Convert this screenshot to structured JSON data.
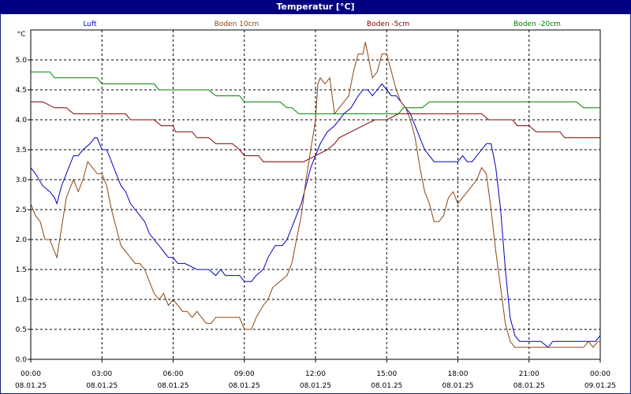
{
  "window": {
    "title": "Temperatur [°C]"
  },
  "chart_data": {
    "type": "line",
    "title": "Temperatur [°C]",
    "ylabel": "°C",
    "ylim": [
      0.0,
      5.5
    ],
    "y_ticks": [
      "0.0",
      "0.5",
      "1.0",
      "1.5",
      "2.0",
      "2.5",
      "3.0",
      "3.5",
      "4.0",
      "4.5",
      "5.0"
    ],
    "x_ticks": [
      {
        "time": "00:00",
        "date": "08.01.25"
      },
      {
        "time": "03:00",
        "date": "08.01.25"
      },
      {
        "time": "06:00",
        "date": "08.01.25"
      },
      {
        "time": "09:00",
        "date": "08.01.25"
      },
      {
        "time": "12:00",
        "date": "08.01.25"
      },
      {
        "time": "15:00",
        "date": "08.01.25"
      },
      {
        "time": "18:00",
        "date": "08.01.25"
      },
      {
        "time": "21:00",
        "date": "08.01.25"
      },
      {
        "time": "00:00",
        "date": "09.01.25"
      }
    ],
    "x_unit": "hours since 08.01.25 00:00",
    "grid": true,
    "legend_position": "top",
    "series": [
      {
        "name": "Luft",
        "color": "#0000c0",
        "points": [
          [
            0.0,
            3.2
          ],
          [
            0.2,
            3.1
          ],
          [
            0.5,
            2.9
          ],
          [
            0.8,
            2.8
          ],
          [
            1.0,
            2.7
          ],
          [
            1.1,
            2.6
          ],
          [
            1.3,
            2.9
          ],
          [
            1.5,
            3.1
          ],
          [
            1.8,
            3.4
          ],
          [
            2.0,
            3.4
          ],
          [
            2.2,
            3.5
          ],
          [
            2.5,
            3.6
          ],
          [
            2.7,
            3.7
          ],
          [
            2.8,
            3.7
          ],
          [
            3.0,
            3.5
          ],
          [
            3.2,
            3.5
          ],
          [
            3.4,
            3.3
          ],
          [
            3.6,
            3.1
          ],
          [
            3.8,
            2.9
          ],
          [
            4.0,
            2.8
          ],
          [
            4.2,
            2.6
          ],
          [
            4.4,
            2.5
          ],
          [
            4.6,
            2.4
          ],
          [
            4.8,
            2.3
          ],
          [
            5.0,
            2.1
          ],
          [
            5.2,
            2.0
          ],
          [
            5.4,
            1.9
          ],
          [
            5.6,
            1.8
          ],
          [
            5.8,
            1.7
          ],
          [
            6.0,
            1.7
          ],
          [
            6.2,
            1.6
          ],
          [
            6.5,
            1.6
          ],
          [
            7.0,
            1.5
          ],
          [
            7.5,
            1.5
          ],
          [
            7.8,
            1.4
          ],
          [
            8.0,
            1.5
          ],
          [
            8.2,
            1.4
          ],
          [
            8.5,
            1.4
          ],
          [
            8.8,
            1.4
          ],
          [
            9.0,
            1.3
          ],
          [
            9.3,
            1.3
          ],
          [
            9.5,
            1.4
          ],
          [
            9.8,
            1.5
          ],
          [
            10.0,
            1.7
          ],
          [
            10.3,
            1.9
          ],
          [
            10.6,
            1.9
          ],
          [
            10.8,
            2.0
          ],
          [
            11.0,
            2.2
          ],
          [
            11.2,
            2.4
          ],
          [
            11.4,
            2.6
          ],
          [
            11.6,
            2.9
          ],
          [
            11.8,
            3.2
          ],
          [
            12.0,
            3.4
          ],
          [
            12.2,
            3.6
          ],
          [
            12.5,
            3.8
          ],
          [
            12.8,
            3.9
          ],
          [
            13.0,
            4.0
          ],
          [
            13.2,
            4.1
          ],
          [
            13.5,
            4.2
          ],
          [
            13.8,
            4.4
          ],
          [
            14.0,
            4.5
          ],
          [
            14.2,
            4.5
          ],
          [
            14.4,
            4.4
          ],
          [
            14.6,
            4.5
          ],
          [
            14.8,
            4.6
          ],
          [
            15.0,
            4.5
          ],
          [
            15.2,
            4.4
          ],
          [
            15.4,
            4.4
          ],
          [
            15.6,
            4.3
          ],
          [
            15.8,
            4.2
          ],
          [
            16.0,
            4.1
          ],
          [
            16.2,
            3.9
          ],
          [
            16.4,
            3.7
          ],
          [
            16.6,
            3.5
          ],
          [
            16.8,
            3.4
          ],
          [
            17.0,
            3.3
          ],
          [
            17.5,
            3.3
          ],
          [
            18.0,
            3.3
          ],
          [
            18.2,
            3.4
          ],
          [
            18.4,
            3.3
          ],
          [
            18.6,
            3.3
          ],
          [
            18.8,
            3.4
          ],
          [
            19.0,
            3.5
          ],
          [
            19.2,
            3.6
          ],
          [
            19.4,
            3.6
          ],
          [
            19.6,
            3.2
          ],
          [
            19.8,
            2.5
          ],
          [
            20.0,
            1.5
          ],
          [
            20.2,
            0.7
          ],
          [
            20.4,
            0.4
          ],
          [
            20.6,
            0.3
          ],
          [
            20.8,
            0.3
          ],
          [
            21.0,
            0.3
          ],
          [
            21.2,
            0.3
          ],
          [
            21.5,
            0.3
          ],
          [
            21.8,
            0.2
          ],
          [
            22.0,
            0.3
          ],
          [
            22.5,
            0.3
          ],
          [
            23.0,
            0.3
          ],
          [
            23.5,
            0.3
          ],
          [
            23.8,
            0.3
          ],
          [
            24.0,
            0.4
          ]
        ]
      },
      {
        "name": "Boden 10cm",
        "color": "#8b4513",
        "points": [
          [
            0.0,
            2.6
          ],
          [
            0.2,
            2.4
          ],
          [
            0.4,
            2.3
          ],
          [
            0.6,
            2.0
          ],
          [
            0.8,
            2.0
          ],
          [
            1.0,
            1.8
          ],
          [
            1.1,
            1.7
          ],
          [
            1.3,
            2.2
          ],
          [
            1.5,
            2.7
          ],
          [
            1.7,
            2.9
          ],
          [
            1.8,
            3.0
          ],
          [
            2.0,
            2.8
          ],
          [
            2.2,
            3.0
          ],
          [
            2.4,
            3.3
          ],
          [
            2.6,
            3.2
          ],
          [
            2.8,
            3.1
          ],
          [
            3.0,
            3.1
          ],
          [
            3.2,
            2.9
          ],
          [
            3.4,
            2.5
          ],
          [
            3.6,
            2.2
          ],
          [
            3.8,
            1.9
          ],
          [
            4.0,
            1.8
          ],
          [
            4.2,
            1.7
          ],
          [
            4.4,
            1.6
          ],
          [
            4.6,
            1.6
          ],
          [
            4.8,
            1.5
          ],
          [
            5.0,
            1.3
          ],
          [
            5.2,
            1.1
          ],
          [
            5.4,
            1.0
          ],
          [
            5.6,
            1.1
          ],
          [
            5.8,
            0.9
          ],
          [
            6.0,
            1.0
          ],
          [
            6.2,
            0.9
          ],
          [
            6.4,
            0.8
          ],
          [
            6.6,
            0.8
          ],
          [
            6.8,
            0.7
          ],
          [
            7.0,
            0.8
          ],
          [
            7.2,
            0.7
          ],
          [
            7.4,
            0.6
          ],
          [
            7.6,
            0.6
          ],
          [
            7.8,
            0.7
          ],
          [
            8.0,
            0.7
          ],
          [
            8.5,
            0.7
          ],
          [
            8.8,
            0.7
          ],
          [
            9.0,
            0.5
          ],
          [
            9.3,
            0.5
          ],
          [
            9.5,
            0.7
          ],
          [
            9.8,
            0.9
          ],
          [
            10.0,
            1.0
          ],
          [
            10.2,
            1.2
          ],
          [
            10.5,
            1.3
          ],
          [
            10.8,
            1.4
          ],
          [
            11.0,
            1.6
          ],
          [
            11.2,
            2.0
          ],
          [
            11.4,
            2.4
          ],
          [
            11.6,
            3.0
          ],
          [
            11.8,
            3.5
          ],
          [
            12.0,
            4.0
          ],
          [
            12.1,
            4.6
          ],
          [
            12.2,
            4.7
          ],
          [
            12.4,
            4.6
          ],
          [
            12.6,
            4.7
          ],
          [
            12.8,
            4.1
          ],
          [
            13.0,
            4.2
          ],
          [
            13.2,
            4.3
          ],
          [
            13.4,
            4.4
          ],
          [
            13.6,
            4.8
          ],
          [
            13.8,
            5.1
          ],
          [
            14.0,
            5.1
          ],
          [
            14.1,
            5.3
          ],
          [
            14.2,
            5.1
          ],
          [
            14.4,
            4.7
          ],
          [
            14.6,
            4.8
          ],
          [
            14.8,
            5.1
          ],
          [
            15.0,
            5.1
          ],
          [
            15.2,
            4.8
          ],
          [
            15.4,
            4.5
          ],
          [
            15.6,
            4.3
          ],
          [
            15.8,
            4.2
          ],
          [
            16.0,
            4.0
          ],
          [
            16.2,
            3.7
          ],
          [
            16.4,
            3.2
          ],
          [
            16.6,
            2.8
          ],
          [
            16.8,
            2.6
          ],
          [
            17.0,
            2.3
          ],
          [
            17.2,
            2.3
          ],
          [
            17.4,
            2.4
          ],
          [
            17.6,
            2.7
          ],
          [
            17.8,
            2.8
          ],
          [
            18.0,
            2.6
          ],
          [
            18.2,
            2.7
          ],
          [
            18.4,
            2.8
          ],
          [
            18.6,
            2.9
          ],
          [
            18.8,
            3.0
          ],
          [
            19.0,
            3.2
          ],
          [
            19.2,
            3.1
          ],
          [
            19.4,
            2.5
          ],
          [
            19.6,
            1.8
          ],
          [
            19.8,
            1.2
          ],
          [
            20.0,
            0.6
          ],
          [
            20.2,
            0.3
          ],
          [
            20.4,
            0.2
          ],
          [
            21.0,
            0.2
          ],
          [
            21.5,
            0.2
          ],
          [
            22.0,
            0.2
          ],
          [
            22.5,
            0.2
          ],
          [
            23.0,
            0.2
          ],
          [
            23.3,
            0.2
          ],
          [
            23.5,
            0.3
          ],
          [
            23.7,
            0.2
          ],
          [
            23.9,
            0.3
          ],
          [
            24.0,
            0.3
          ]
        ]
      },
      {
        "name": "Boden -5cm",
        "color": "#800000",
        "points": [
          [
            0.0,
            4.3
          ],
          [
            0.5,
            4.3
          ],
          [
            1.0,
            4.2
          ],
          [
            1.5,
            4.2
          ],
          [
            1.8,
            4.1
          ],
          [
            3.0,
            4.1
          ],
          [
            4.0,
            4.1
          ],
          [
            4.2,
            4.0
          ],
          [
            5.0,
            4.0
          ],
          [
            5.2,
            4.0
          ],
          [
            5.5,
            3.9
          ],
          [
            6.0,
            3.9
          ],
          [
            6.1,
            3.8
          ],
          [
            6.8,
            3.8
          ],
          [
            7.0,
            3.7
          ],
          [
            7.5,
            3.7
          ],
          [
            7.8,
            3.6
          ],
          [
            8.5,
            3.6
          ],
          [
            8.8,
            3.5
          ],
          [
            9.0,
            3.4
          ],
          [
            9.6,
            3.4
          ],
          [
            9.8,
            3.3
          ],
          [
            11.0,
            3.3
          ],
          [
            11.5,
            3.3
          ],
          [
            12.0,
            3.4
          ],
          [
            12.5,
            3.5
          ],
          [
            12.8,
            3.6
          ],
          [
            13.0,
            3.7
          ],
          [
            13.5,
            3.8
          ],
          [
            14.0,
            3.9
          ],
          [
            14.5,
            4.0
          ],
          [
            15.0,
            4.0
          ],
          [
            15.5,
            4.1
          ],
          [
            16.0,
            4.1
          ],
          [
            18.0,
            4.1
          ],
          [
            19.0,
            4.1
          ],
          [
            19.3,
            4.0
          ],
          [
            20.0,
            4.0
          ],
          [
            20.3,
            4.0
          ],
          [
            20.5,
            3.9
          ],
          [
            21.0,
            3.9
          ],
          [
            21.3,
            3.8
          ],
          [
            22.0,
            3.8
          ],
          [
            22.3,
            3.8
          ],
          [
            22.5,
            3.7
          ],
          [
            24.0,
            3.7
          ]
        ]
      },
      {
        "name": "Boden -20cm",
        "color": "#008000",
        "points": [
          [
            0.0,
            4.8
          ],
          [
            0.8,
            4.8
          ],
          [
            1.0,
            4.7
          ],
          [
            2.8,
            4.7
          ],
          [
            3.0,
            4.6
          ],
          [
            5.2,
            4.6
          ],
          [
            5.4,
            4.5
          ],
          [
            7.5,
            4.5
          ],
          [
            7.8,
            4.4
          ],
          [
            8.8,
            4.4
          ],
          [
            9.0,
            4.3
          ],
          [
            10.5,
            4.3
          ],
          [
            10.8,
            4.2
          ],
          [
            11.0,
            4.2
          ],
          [
            11.3,
            4.1
          ],
          [
            12.0,
            4.1
          ],
          [
            13.0,
            4.1
          ],
          [
            15.5,
            4.1
          ],
          [
            15.7,
            4.2
          ],
          [
            16.5,
            4.2
          ],
          [
            16.8,
            4.3
          ],
          [
            19.0,
            4.3
          ],
          [
            20.0,
            4.3
          ],
          [
            23.0,
            4.3
          ],
          [
            23.3,
            4.2
          ],
          [
            24.0,
            4.2
          ]
        ]
      }
    ]
  }
}
